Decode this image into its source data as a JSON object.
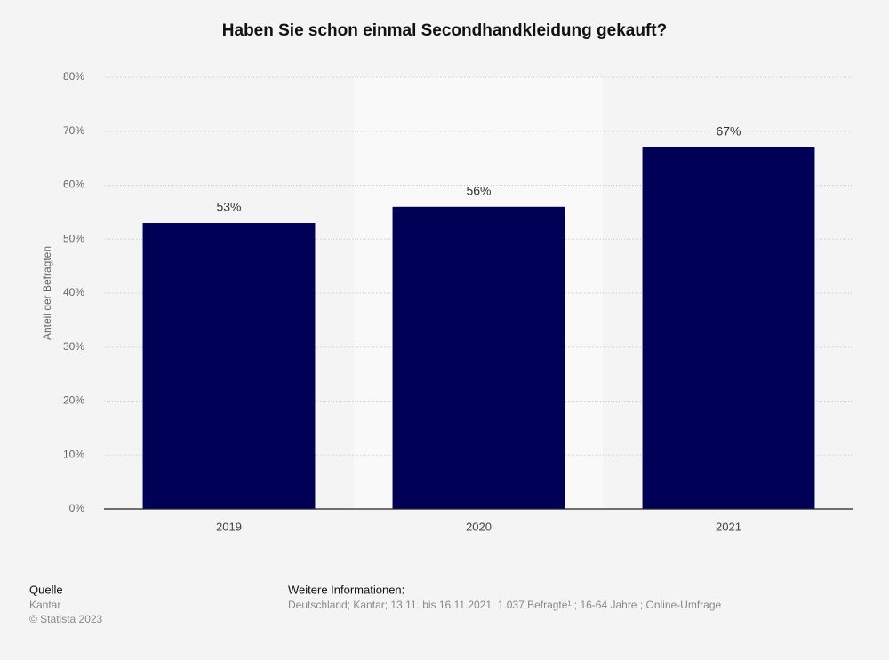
{
  "chart_data": {
    "type": "bar",
    "title": "Haben Sie schon einmal Secondhandkleidung gekauft?",
    "y_label": "Anteil der Befragten",
    "categories": [
      "2019",
      "2020",
      "2021"
    ],
    "values": [
      53,
      56,
      67
    ],
    "value_labels": [
      "53%",
      "56%",
      "67%"
    ],
    "color": "#000057",
    "ylim": [
      0,
      80
    ],
    "yticks": [
      {
        "value": 0,
        "label": "0%"
      },
      {
        "value": 10,
        "label": "10%"
      },
      {
        "value": 20,
        "label": "20%"
      },
      {
        "value": 30,
        "label": "30%"
      },
      {
        "value": 40,
        "label": "40%"
      },
      {
        "value": 50,
        "label": "50%"
      },
      {
        "value": 60,
        "label": "60%"
      },
      {
        "value": 70,
        "label": "70%"
      },
      {
        "value": 80,
        "label": "80%"
      }
    ],
    "grid": true
  },
  "footer": {
    "source_title": "Quelle",
    "source": "Kantar",
    "copyright": "© Statista 2023",
    "info_title": "Weitere Informationen:",
    "info": "Deutschland; Kantar; 13.11. bis 16.11.2021; 1.037 Befragte¹ ; 16-64 Jahre ; Online-Umfrage"
  }
}
